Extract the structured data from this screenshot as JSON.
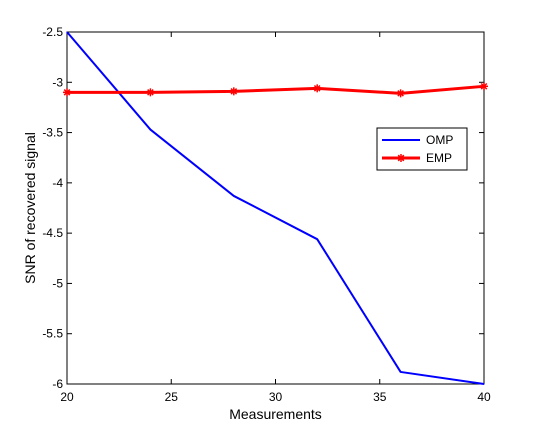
{
  "chart_data": {
    "type": "line",
    "xlabel": "Measurements",
    "ylabel": "SNR of recovered signal",
    "xlim": [
      20,
      40
    ],
    "ylim": [
      -6,
      -2.5
    ],
    "xticks": [
      20,
      25,
      30,
      35,
      40
    ],
    "yticks": [
      -6,
      -5.5,
      -5,
      -4.5,
      -4,
      -3.5,
      -3,
      -2.5
    ],
    "grid": false,
    "legend_position": "right",
    "series": [
      {
        "name": "OMP",
        "color": "#0000ff",
        "marker": "none",
        "x": [
          20,
          24,
          28,
          32,
          36,
          40
        ],
        "y": [
          -2.5,
          -3.47,
          -4.13,
          -4.56,
          -5.88,
          -6.0
        ]
      },
      {
        "name": "EMP",
        "color": "#ff0000",
        "marker": "star",
        "x": [
          20,
          24,
          28,
          32,
          36,
          40
        ],
        "y": [
          -3.1,
          -3.1,
          -3.09,
          -3.06,
          -3.11,
          -3.04
        ]
      }
    ]
  }
}
